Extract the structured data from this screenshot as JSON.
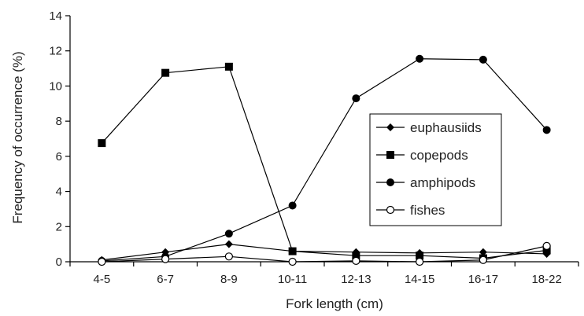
{
  "chart_data": {
    "type": "line",
    "title": "",
    "xlabel": "Fork length (cm)",
    "ylabel": "Frequency of occurrence (%)",
    "categories": [
      "4-5",
      "6-7",
      "8-9",
      "10-11",
      "12-13",
      "14-15",
      "16-17",
      "18-22"
    ],
    "ylim": [
      0,
      14
    ],
    "yticks": [
      0,
      2,
      4,
      6,
      8,
      10,
      12,
      14
    ],
    "grid": false,
    "legend_position": "center-right",
    "series": [
      {
        "name": "euphausiids",
        "marker": "diamond",
        "color": "#000000",
        "values": [
          0.1,
          0.55,
          1.0,
          0.6,
          0.55,
          0.5,
          0.55,
          0.45
        ]
      },
      {
        "name": "copepods",
        "marker": "square",
        "color": "#000000",
        "values": [
          6.75,
          10.75,
          11.1,
          0.6,
          0.35,
          0.35,
          0.2,
          0.65
        ]
      },
      {
        "name": "amphipods",
        "marker": "circle",
        "color": "#000000",
        "values": [
          0.05,
          0.3,
          1.6,
          3.2,
          9.3,
          11.55,
          11.5,
          7.5
        ]
      },
      {
        "name": "fishes",
        "marker": "open-circle",
        "color": "#000000",
        "values": [
          0.0,
          0.15,
          0.3,
          0.0,
          0.05,
          0.0,
          0.1,
          0.9
        ]
      }
    ]
  }
}
